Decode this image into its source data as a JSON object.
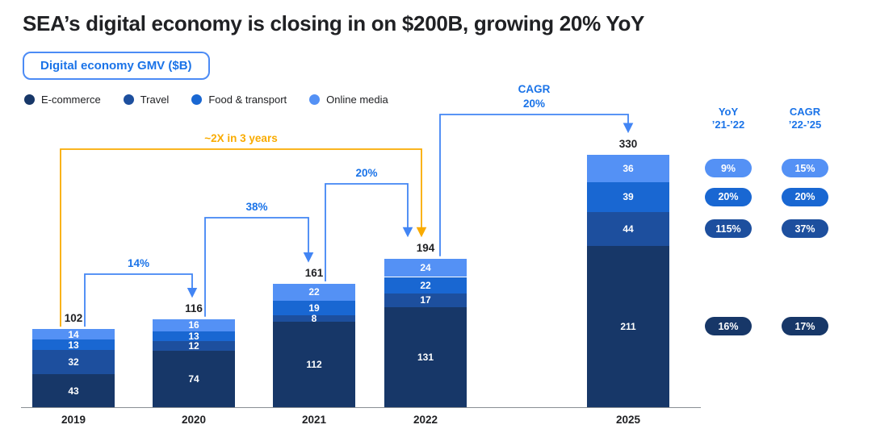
{
  "header": {
    "title": "SEA’s digital economy is closing in on $200B, growing 20% YoY"
  },
  "badge": {
    "label": "Digital economy GMV ($B)"
  },
  "legend": [
    {
      "label": "E-commerce",
      "color": "#173768"
    },
    {
      "label": "Travel",
      "color": "#1D4F9E"
    },
    {
      "label": "Food & transport",
      "color": "#1967D2"
    },
    {
      "label": "Online media",
      "color": "#5491F5"
    }
  ],
  "colors": {
    "accent_blue": "#1A73E8",
    "arrow_blue": "#4285F4",
    "orange": "#F9AB00",
    "text_dark": "#202124"
  },
  "chart_data": {
    "type": "bar",
    "stacked": true,
    "title": "Digital economy GMV ($B)",
    "xlabel": "",
    "ylabel": "GMV ($B)",
    "ylim": [
      0,
      330
    ],
    "legend_position": "top",
    "grid": false,
    "categories": [
      "2019",
      "2020",
      "2021",
      "2022",
      "2025"
    ],
    "series": [
      {
        "name": "E-commerce",
        "color": "#173768",
        "values": [
          43,
          74,
          112,
          131,
          211
        ]
      },
      {
        "name": "Travel",
        "color": "#1D4F9E",
        "values": [
          32,
          12,
          8,
          17,
          44
        ]
      },
      {
        "name": "Food & transport",
        "color": "#1967D2",
        "values": [
          13,
          13,
          19,
          22,
          39
        ]
      },
      {
        "name": "Online media",
        "color": "#5491F5",
        "values": [
          14,
          16,
          22,
          24,
          36
        ]
      }
    ],
    "totals": [
      102,
      116,
      161,
      194,
      330
    ],
    "annotations": [
      {
        "label": "14%",
        "from": "2019",
        "to": "2020",
        "color": "blue"
      },
      {
        "label": "38%",
        "from": "2020",
        "to": "2021",
        "color": "blue"
      },
      {
        "label": "20%",
        "from": "2021",
        "to": "2022",
        "color": "blue"
      },
      {
        "label": "CAGR\n20%",
        "from": "2022",
        "to": "2025",
        "color": "blue"
      },
      {
        "label": "~2X in 3 years",
        "from": "2019",
        "to": "2022",
        "color": "orange"
      }
    ]
  },
  "growth_table": {
    "columns": [
      {
        "title": "YoY",
        "subtitle": "’21-’22"
      },
      {
        "title": "CAGR",
        "subtitle": "’22-’25"
      }
    ],
    "rows": [
      {
        "segment": "Online media",
        "yoy": "9%",
        "cagr": "15%",
        "color": "#5491F5"
      },
      {
        "segment": "Food & transport",
        "yoy": "20%",
        "cagr": "20%",
        "color": "#1967D2"
      },
      {
        "segment": "Travel",
        "yoy": "115%",
        "cagr": "37%",
        "color": "#1D4F9E"
      },
      {
        "segment": "E-commerce",
        "yoy": "16%",
        "cagr": "17%",
        "color": "#173768"
      }
    ]
  }
}
